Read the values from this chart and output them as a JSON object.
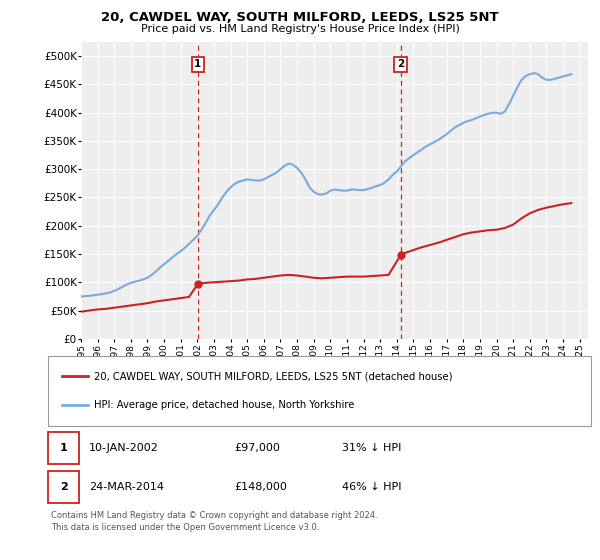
{
  "title": "20, CAWDEL WAY, SOUTH MILFORD, LEEDS, LS25 5NT",
  "subtitle": "Price paid vs. HM Land Registry's House Price Index (HPI)",
  "xlim_start": 1995.0,
  "xlim_end": 2025.5,
  "ylim": [
    0,
    525000
  ],
  "yticks": [
    0,
    50000,
    100000,
    150000,
    200000,
    250000,
    300000,
    350000,
    400000,
    450000,
    500000
  ],
  "ytick_labels": [
    "£0",
    "£50K",
    "£100K",
    "£150K",
    "£200K",
    "£250K",
    "£300K",
    "£350K",
    "£400K",
    "£450K",
    "£500K"
  ],
  "background_color": "#ffffff",
  "plot_bg_color": "#eeeeee",
  "hpi_color": "#7aaadd",
  "price_color": "#cc2222",
  "vline_color": "#cc2222",
  "annotation_box_color": "#cc2222",
  "point1_date": 2002.03,
  "point1_label": "1",
  "point1_price": 97000,
  "point2_date": 2014.23,
  "point2_label": "2",
  "point2_price": 148000,
  "legend_entry1": "20, CAWDEL WAY, SOUTH MILFORD, LEEDS, LS25 5NT (detached house)",
  "legend_entry2": "HPI: Average price, detached house, North Yorkshire",
  "table_row1": [
    "1",
    "10-JAN-2002",
    "£97,000",
    "31% ↓ HPI"
  ],
  "table_row2": [
    "2",
    "24-MAR-2014",
    "£148,000",
    "46% ↓ HPI"
  ],
  "footnote1": "Contains HM Land Registry data © Crown copyright and database right 2024.",
  "footnote2": "This data is licensed under the Open Government Licence v3.0.",
  "hpi_years": [
    1995.0,
    1995.25,
    1995.5,
    1995.75,
    1996.0,
    1996.25,
    1996.5,
    1996.75,
    1997.0,
    1997.25,
    1997.5,
    1997.75,
    1998.0,
    1998.25,
    1998.5,
    1998.75,
    1999.0,
    1999.25,
    1999.5,
    1999.75,
    2000.0,
    2000.25,
    2000.5,
    2000.75,
    2001.0,
    2001.25,
    2001.5,
    2001.75,
    2002.0,
    2002.25,
    2002.5,
    2002.75,
    2003.0,
    2003.25,
    2003.5,
    2003.75,
    2004.0,
    2004.25,
    2004.5,
    2004.75,
    2005.0,
    2005.25,
    2005.5,
    2005.75,
    2006.0,
    2006.25,
    2006.5,
    2006.75,
    2007.0,
    2007.25,
    2007.5,
    2007.75,
    2008.0,
    2008.25,
    2008.5,
    2008.75,
    2009.0,
    2009.25,
    2009.5,
    2009.75,
    2010.0,
    2010.25,
    2010.5,
    2010.75,
    2011.0,
    2011.25,
    2011.5,
    2011.75,
    2012.0,
    2012.25,
    2012.5,
    2012.75,
    2013.0,
    2013.25,
    2013.5,
    2013.75,
    2014.0,
    2014.25,
    2014.5,
    2014.75,
    2015.0,
    2015.25,
    2015.5,
    2015.75,
    2016.0,
    2016.25,
    2016.5,
    2016.75,
    2017.0,
    2017.25,
    2017.5,
    2017.75,
    2018.0,
    2018.25,
    2018.5,
    2018.75,
    2019.0,
    2019.25,
    2019.5,
    2019.75,
    2020.0,
    2020.25,
    2020.5,
    2020.75,
    2021.0,
    2021.25,
    2021.5,
    2021.75,
    2022.0,
    2022.25,
    2022.5,
    2022.75,
    2023.0,
    2023.25,
    2023.5,
    2023.75,
    2024.0,
    2024.25,
    2024.5
  ],
  "hpi_vals": [
    75000,
    75500,
    76000,
    77000,
    78000,
    79000,
    80500,
    82000,
    85000,
    88000,
    92000,
    96000,
    99000,
    101000,
    103000,
    105000,
    108000,
    113000,
    119000,
    126000,
    132000,
    138000,
    144000,
    150000,
    155000,
    161000,
    168000,
    175000,
    182000,
    193000,
    205000,
    218000,
    228000,
    238000,
    250000,
    260000,
    268000,
    274000,
    278000,
    280000,
    282000,
    281000,
    280000,
    280000,
    282000,
    286000,
    290000,
    294000,
    300000,
    306000,
    310000,
    308000,
    302000,
    294000,
    282000,
    268000,
    260000,
    256000,
    255000,
    257000,
    262000,
    264000,
    263000,
    262000,
    262000,
    264000,
    264000,
    263000,
    263000,
    265000,
    267000,
    270000,
    272000,
    276000,
    282000,
    290000,
    296000,
    305000,
    314000,
    320000,
    325000,
    330000,
    335000,
    340000,
    344000,
    348000,
    352000,
    357000,
    362000,
    368000,
    374000,
    378000,
    382000,
    385000,
    387000,
    390000,
    393000,
    396000,
    398000,
    400000,
    400000,
    398000,
    402000,
    415000,
    430000,
    445000,
    458000,
    465000,
    468000,
    470000,
    468000,
    462000,
    458000,
    458000,
    460000,
    462000,
    464000,
    466000,
    468000
  ],
  "price_years": [
    1995.0,
    1995.5,
    1996.0,
    1996.5,
    1997.0,
    1997.5,
    1998.0,
    1998.5,
    1999.0,
    1999.5,
    2000.0,
    2000.5,
    2001.0,
    2001.5,
    2002.03,
    2002.5,
    2003.0,
    2003.5,
    2004.0,
    2004.5,
    2005.0,
    2005.5,
    2006.0,
    2006.5,
    2007.0,
    2007.5,
    2008.0,
    2008.5,
    2009.0,
    2009.5,
    2010.0,
    2010.5,
    2011.0,
    2011.5,
    2012.0,
    2012.5,
    2013.0,
    2013.5,
    2014.23,
    2014.5,
    2015.0,
    2015.5,
    2016.0,
    2016.5,
    2017.0,
    2017.5,
    2018.0,
    2018.5,
    2019.0,
    2019.5,
    2020.0,
    2020.5,
    2021.0,
    2021.5,
    2022.0,
    2022.5,
    2023.0,
    2023.5,
    2024.0,
    2024.5
  ],
  "price_vals": [
    48000,
    50000,
    52000,
    53000,
    55000,
    57000,
    59000,
    61000,
    63000,
    66000,
    68000,
    70000,
    72000,
    74000,
    97000,
    99000,
    100000,
    101000,
    102000,
    103000,
    105000,
    106000,
    108000,
    110000,
    112000,
    113000,
    112000,
    110000,
    108000,
    107000,
    108000,
    109000,
    110000,
    110000,
    110000,
    111000,
    112000,
    113000,
    148000,
    152000,
    157000,
    162000,
    166000,
    170000,
    175000,
    180000,
    185000,
    188000,
    190000,
    192000,
    193000,
    196000,
    202000,
    213000,
    222000,
    228000,
    232000,
    235000,
    238000,
    240000
  ]
}
